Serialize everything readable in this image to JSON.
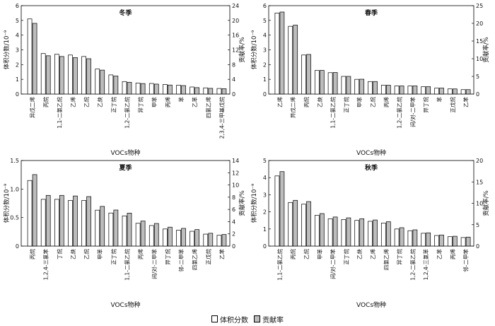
{
  "legend": {
    "volume": "体积分数",
    "contribution": "贡献率"
  },
  "colors": {
    "volume_fill": "#ffffff",
    "contribution_fill": "#bdbdbd",
    "stroke": "#000000"
  },
  "chart_data": [
    {
      "type": "bar",
      "title": "冬季",
      "xlabel": "VOCs物种",
      "ylabel": "体积分数/10⁻⁹",
      "y2label": "贡献率/%",
      "ylim": [
        0,
        6
      ],
      "y2lim": [
        0,
        24
      ],
      "yticks": [
        "0",
        "1",
        "2",
        "3",
        "4",
        "5",
        "6"
      ],
      "y2ticks": [
        "0",
        "4",
        "8",
        "12",
        "16",
        "20",
        "24"
      ],
      "categories": [
        "异戊二烯",
        "丙烷",
        "1,1-二氯乙烷",
        "乙烯",
        "乙烷",
        "乙炔",
        "正丁烷",
        "1,2-二氯乙烷",
        "异丁烷",
        "甲苯",
        "丙烯",
        "苯",
        "乙苯",
        "四氯乙烯",
        "2,3,4-三甲基戊烷"
      ],
      "series": [
        {
          "name": "体积分数",
          "values": [
            5.1,
            2.75,
            2.7,
            2.65,
            2.55,
            1.7,
            1.3,
            0.85,
            0.75,
            0.72,
            0.65,
            0.6,
            0.48,
            0.42,
            0.38
          ]
        },
        {
          "name": "贡献率",
          "values": [
            19.2,
            10.4,
            10.2,
            9.9,
            9.6,
            6.5,
            4.9,
            3.2,
            2.85,
            2.7,
            2.45,
            2.3,
            1.75,
            1.55,
            1.45
          ]
        }
      ]
    },
    {
      "type": "bar",
      "title": "春季",
      "xlabel": "VOCs物种",
      "ylabel": "体积分数/10⁻⁹",
      "y2label": "贡献率/%",
      "ylim": [
        0,
        6
      ],
      "y2lim": [
        0,
        25
      ],
      "yticks": [
        "0",
        "1",
        "2",
        "3",
        "4",
        "5",
        "6"
      ],
      "y2ticks": [
        "0",
        "5",
        "10",
        "15",
        "20",
        "25"
      ],
      "categories": [
        "乙烯",
        "异戊二烯",
        "丙烷",
        "乙炔",
        "1,1-二氯乙烷",
        "正丁烷",
        "甲苯",
        "乙烷",
        "丙烯",
        "1,2-二氯乙烷",
        "间/对-二甲苯",
        "异丁烷",
        "苯",
        "正戊烷",
        "乙苯"
      ],
      "series": [
        {
          "name": "体积分数",
          "values": [
            5.5,
            4.6,
            2.65,
            1.6,
            1.45,
            1.2,
            1.0,
            0.85,
            0.6,
            0.55,
            0.55,
            0.5,
            0.4,
            0.35,
            0.3
          ]
        },
        {
          "name": "贡献率",
          "values": [
            23.2,
            19.5,
            11.2,
            6.7,
            6.1,
            5.0,
            4.2,
            3.55,
            2.5,
            2.3,
            2.3,
            2.1,
            1.7,
            1.45,
            1.25
          ]
        }
      ]
    },
    {
      "type": "bar",
      "title": "夏季",
      "xlabel": "VOCs物种",
      "ylabel": "体积分数/10⁻⁹",
      "y2label": "贡献率/%",
      "ylim": [
        0,
        1.5
      ],
      "y2lim": [
        0,
        14
      ],
      "yticks": [
        "0",
        "0.5",
        "1.0",
        "1.5"
      ],
      "y2ticks": [
        "0",
        "2",
        "4",
        "6",
        "8",
        "10",
        "12",
        "14"
      ],
      "categories": [
        "丙烷",
        "1,2,4-三氯苯",
        "丁烷",
        "乙炔",
        "乙烷",
        "甲苯",
        "正丁烷",
        "1,1-二氯乙烷",
        "丙烯",
        "间/对-二甲苯",
        "异丁烷",
        "邻-二甲苯",
        "四氯乙烯",
        "正戊烷",
        "乙苯"
      ],
      "series": [
        {
          "name": "体积分数",
          "values": [
            1.15,
            0.82,
            0.82,
            0.8,
            0.8,
            0.63,
            0.58,
            0.53,
            0.4,
            0.36,
            0.3,
            0.28,
            0.26,
            0.21,
            0.19
          ]
        },
        {
          "name": "贡献率",
          "values": [
            11.7,
            8.3,
            8.3,
            8.2,
            8.1,
            6.5,
            5.9,
            5.4,
            4.1,
            3.7,
            3.1,
            2.9,
            2.7,
            2.1,
            1.9
          ]
        }
      ]
    },
    {
      "type": "bar",
      "title": "秋季",
      "xlabel": "VOCs物种",
      "ylabel": "体积分数/10⁻⁹",
      "y2label": "贡献率/%",
      "ylim": [
        0,
        5
      ],
      "y2lim": [
        0,
        20
      ],
      "yticks": [
        "0",
        "1",
        "2",
        "3",
        "4",
        "5"
      ],
      "y2ticks": [
        "0",
        "5",
        "10",
        "15",
        "20"
      ],
      "categories": [
        "1,1-二氯乙烷",
        "丙烷",
        "乙烷",
        "甲苯",
        "间/对-二甲苯",
        "正丁烷",
        "乙炔",
        "乙烯",
        "四氯乙烯",
        "异丁烷",
        "1,2-二氯乙烷",
        "1,2,4-三氯苯",
        "乙苯",
        "丙烯",
        "邻-二甲苯"
      ],
      "series": [
        {
          "name": "体积分数",
          "values": [
            4.1,
            2.55,
            2.45,
            1.8,
            1.6,
            1.55,
            1.5,
            1.45,
            1.35,
            1.0,
            0.9,
            0.75,
            0.62,
            0.55,
            0.5
          ]
        },
        {
          "name": "贡献率",
          "values": [
            17.4,
            10.7,
            10.4,
            7.6,
            6.8,
            6.6,
            6.4,
            6.1,
            5.7,
            4.3,
            3.8,
            3.1,
            2.6,
            2.3,
            2.1
          ]
        }
      ]
    }
  ]
}
